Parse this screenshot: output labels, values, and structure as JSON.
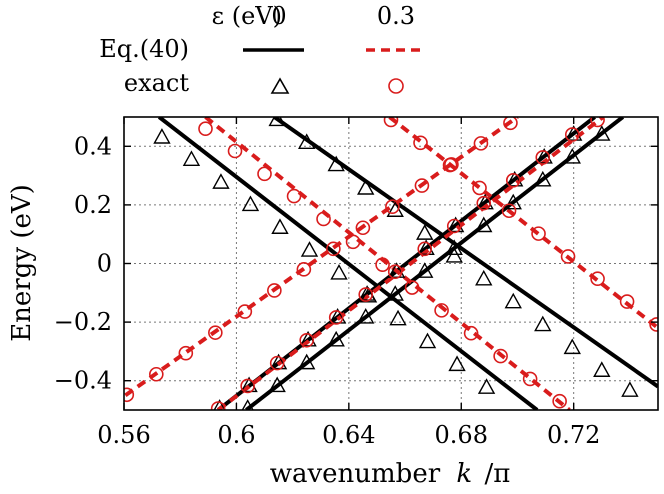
{
  "chart_data": {
    "type": "line",
    "xlabel": "wavenumber",
    "xlabel_k": "k",
    "xlabel_pi": "/π",
    "ylabel": "Energy  (eV)",
    "xlim": [
      0.56,
      0.75
    ],
    "ylim": [
      -0.5,
      0.5
    ],
    "x_ticks": [
      0.56,
      0.6,
      0.64,
      0.68,
      0.72
    ],
    "x_tick_labels": [
      "0.56",
      "0.6",
      "0.64",
      "0.68",
      "0.72"
    ],
    "y_ticks": [
      -0.4,
      -0.2,
      0,
      0.2,
      0.4
    ],
    "y_tick_labels": [
      "−0.4",
      "−0.2",
      "0",
      "0.2",
      "0.4"
    ],
    "grid": true,
    "legend": {
      "position": "top",
      "header_label": "ε (eV)",
      "col1": "0",
      "col2": "0.3",
      "row1": "Eq.(40)",
      "row2": "exact"
    },
    "series": [
      {
        "name": "Eq.(40) ε=0",
        "eps": "0",
        "style": "solid",
        "color": "#000000",
        "lines": [
          {
            "x0": 0.5725,
            "y0": 0.5,
            "x1": 0.707,
            "y1": -0.5
          },
          {
            "x0": 0.6135,
            "y0": 0.5,
            "x1": 0.75,
            "y1": -0.42
          },
          {
            "x0": 0.5935,
            "y0": -0.5,
            "x1": 0.7275,
            "y1": 0.5
          },
          {
            "x0": 0.6035,
            "y0": -0.5,
            "x1": 0.7375,
            "y1": 0.5
          }
        ]
      },
      {
        "name": "exact ε=0",
        "eps": "0",
        "marker": "triangle",
        "color": "#000000",
        "points": [
          [
            0.5735,
            0.43
          ],
          [
            0.584,
            0.354
          ],
          [
            0.5945,
            0.276
          ],
          [
            0.605,
            0.2
          ],
          [
            0.6155,
            0.122
          ],
          [
            0.626,
            0.044
          ],
          [
            0.6365,
            -0.034
          ],
          [
            0.647,
            -0.112
          ],
          [
            0.6575,
            -0.19
          ],
          [
            0.668,
            -0.268
          ],
          [
            0.6785,
            -0.346
          ],
          [
            0.689,
            -0.424
          ],
          [
            0.6145,
            0.49
          ],
          [
            0.625,
            0.412
          ],
          [
            0.6355,
            0.336
          ],
          [
            0.646,
            0.256
          ],
          [
            0.6565,
            0.18
          ],
          [
            0.667,
            0.102
          ],
          [
            0.6775,
            0.024
          ],
          [
            0.688,
            -0.054
          ],
          [
            0.6985,
            -0.132
          ],
          [
            0.709,
            -0.21
          ],
          [
            0.7195,
            -0.288
          ],
          [
            0.73,
            -0.366
          ],
          [
            0.74,
            -0.434
          ],
          [
            0.594,
            -0.495
          ],
          [
            0.6045,
            -0.418
          ],
          [
            0.615,
            -0.34
          ],
          [
            0.6255,
            -0.262
          ],
          [
            0.636,
            -0.184
          ],
          [
            0.6465,
            -0.106
          ],
          [
            0.657,
            -0.028
          ],
          [
            0.6675,
            0.05
          ],
          [
            0.678,
            0.128
          ],
          [
            0.6885,
            0.206
          ],
          [
            0.699,
            0.284
          ],
          [
            0.7095,
            0.362
          ],
          [
            0.72,
            0.44
          ],
          [
            0.604,
            -0.495
          ],
          [
            0.6145,
            -0.418
          ],
          [
            0.625,
            -0.34
          ],
          [
            0.6355,
            -0.262
          ],
          [
            0.646,
            -0.184
          ],
          [
            0.6565,
            -0.106
          ],
          [
            0.667,
            -0.028
          ],
          [
            0.6775,
            0.05
          ],
          [
            0.688,
            0.128
          ],
          [
            0.6985,
            0.206
          ],
          [
            0.709,
            0.284
          ],
          [
            0.7195,
            0.362
          ],
          [
            0.73,
            0.44
          ]
        ]
      },
      {
        "name": "Eq.(40) ε=0.3",
        "eps": "0.3",
        "style": "dashed",
        "color": "#d91c1c",
        "lines": [
          {
            "x0": 0.5605,
            "y0": -0.45,
            "x1": 0.7,
            "y1": 0.5
          },
          {
            "x0": 0.589,
            "y0": 0.5,
            "x1": 0.7185,
            "y1": -0.5
          },
          {
            "x0": 0.6545,
            "y0": 0.5,
            "x1": 0.75,
            "y1": -0.22
          },
          {
            "x0": 0.5935,
            "y0": -0.5,
            "x1": 0.7305,
            "y1": 0.5
          }
        ]
      },
      {
        "name": "exact ε=0.3",
        "eps": "0.3",
        "marker": "circle",
        "color": "#d91c1c",
        "points": [
          [
            0.561,
            -0.448
          ],
          [
            0.5715,
            -0.378
          ],
          [
            0.582,
            -0.306
          ],
          [
            0.5925,
            -0.236
          ],
          [
            0.603,
            -0.164
          ],
          [
            0.6135,
            -0.092
          ],
          [
            0.624,
            -0.02
          ],
          [
            0.6345,
            0.05
          ],
          [
            0.645,
            0.122
          ],
          [
            0.6555,
            0.194
          ],
          [
            0.666,
            0.266
          ],
          [
            0.6765,
            0.338
          ],
          [
            0.687,
            0.41
          ],
          [
            0.6975,
            0.48
          ],
          [
            0.589,
            0.46
          ],
          [
            0.5995,
            0.384
          ],
          [
            0.61,
            0.306
          ],
          [
            0.6205,
            0.23
          ],
          [
            0.631,
            0.152
          ],
          [
            0.6415,
            0.074
          ],
          [
            0.652,
            -0.004
          ],
          [
            0.6625,
            -0.082
          ],
          [
            0.673,
            -0.16
          ],
          [
            0.6835,
            -0.238
          ],
          [
            0.694,
            -0.316
          ],
          [
            0.7045,
            -0.394
          ],
          [
            0.715,
            -0.47
          ],
          [
            0.655,
            0.49
          ],
          [
            0.6655,
            0.412
          ],
          [
            0.676,
            0.336
          ],
          [
            0.6865,
            0.258
          ],
          [
            0.697,
            0.18
          ],
          [
            0.7075,
            0.102
          ],
          [
            0.718,
            0.024
          ],
          [
            0.7285,
            -0.052
          ],
          [
            0.739,
            -0.13
          ],
          [
            0.7495,
            -0.208
          ],
          [
            0.5935,
            -0.495
          ],
          [
            0.604,
            -0.418
          ],
          [
            0.6145,
            -0.34
          ],
          [
            0.625,
            -0.262
          ],
          [
            0.6355,
            -0.184
          ],
          [
            0.646,
            -0.106
          ],
          [
            0.6565,
            -0.028
          ],
          [
            0.667,
            0.05
          ],
          [
            0.6775,
            0.128
          ],
          [
            0.688,
            0.206
          ],
          [
            0.6985,
            0.284
          ],
          [
            0.709,
            0.362
          ],
          [
            0.7195,
            0.44
          ],
          [
            0.7285,
            0.49
          ]
        ]
      }
    ]
  }
}
